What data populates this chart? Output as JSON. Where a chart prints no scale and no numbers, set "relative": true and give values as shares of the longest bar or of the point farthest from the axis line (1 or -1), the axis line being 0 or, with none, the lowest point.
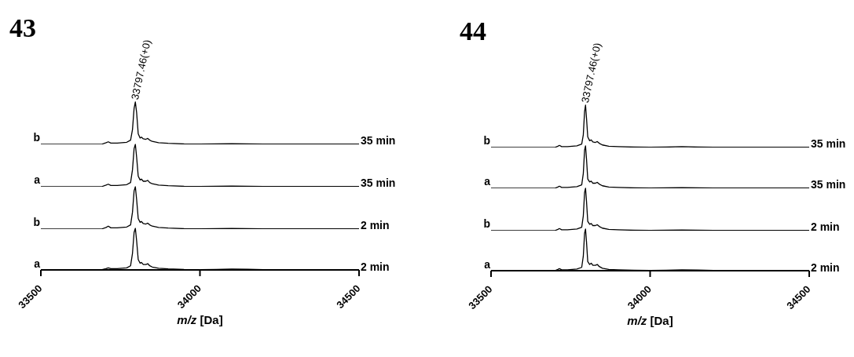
{
  "chart_data": [
    {
      "type": "line",
      "title": "43",
      "relative": true,
      "tick_labels": false,
      "xlim": [
        33500,
        34500
      ],
      "annotations": [
        "b",
        "35 min",
        {
          "text": "33797.46(+0)",
          "x": 33797,
          "y": 1
        }
      ],
      "x": [
        33500,
        33690,
        33705,
        33712,
        33720,
        33740,
        33770,
        33782,
        33788,
        33793,
        33797,
        33801,
        33806,
        33812,
        33816,
        33822,
        33830,
        33836,
        33842,
        33850,
        33870,
        33900,
        33950,
        34000,
        34050,
        34100,
        34150,
        34200,
        34300,
        34400,
        34500
      ],
      "series": [
        {
          "color": "#000000",
          "values": [
            0,
            0,
            0.04,
            0.06,
            0.03,
            0.03,
            0.05,
            0.1,
            0.35,
            0.85,
            1,
            0.75,
            0.25,
            0.15,
            0.17,
            0.13,
            0.12,
            0.14,
            0.1,
            0.07,
            0.04,
            0.025,
            0.01,
            0.005,
            0.01,
            0.015,
            0.01,
            0.005,
            0.005,
            0.005,
            0.005
          ]
        }
      ]
    },
    {
      "type": "line",
      "relative": true,
      "tick_labels": false,
      "xlim": [
        33500,
        34500
      ],
      "annotations": [
        "a",
        "35 min"
      ],
      "x": [
        33500,
        33690,
        33705,
        33712,
        33720,
        33740,
        33770,
        33782,
        33788,
        33793,
        33797,
        33801,
        33806,
        33812,
        33816,
        33822,
        33830,
        33836,
        33842,
        33850,
        33870,
        33900,
        33950,
        34000,
        34050,
        34100,
        34150,
        34200,
        34300,
        34400,
        34500
      ],
      "series": [
        {
          "color": "#000000",
          "values": [
            0,
            0,
            0.04,
            0.06,
            0.03,
            0.03,
            0.05,
            0.1,
            0.4,
            0.9,
            1,
            0.7,
            0.25,
            0.16,
            0.18,
            0.13,
            0.13,
            0.15,
            0.1,
            0.07,
            0.04,
            0.025,
            0.01,
            0.005,
            0.01,
            0.015,
            0.01,
            0.005,
            0.005,
            0.005,
            0.005
          ]
        }
      ]
    },
    {
      "type": "line",
      "relative": true,
      "tick_labels": false,
      "xlim": [
        33500,
        34500
      ],
      "annotations": [
        "b",
        "2 min"
      ],
      "x": [
        33500,
        33690,
        33705,
        33712,
        33720,
        33740,
        33770,
        33782,
        33788,
        33793,
        33797,
        33801,
        33806,
        33812,
        33816,
        33822,
        33830,
        33836,
        33842,
        33850,
        33870,
        33900,
        33950,
        34000,
        34050,
        34100,
        34150,
        34200,
        34300,
        34400,
        34500
      ],
      "series": [
        {
          "color": "#000000",
          "values": [
            0,
            0,
            0.04,
            0.07,
            0.03,
            0.03,
            0.05,
            0.1,
            0.4,
            0.9,
            1,
            0.7,
            0.25,
            0.16,
            0.18,
            0.13,
            0.12,
            0.14,
            0.1,
            0.07,
            0.04,
            0.025,
            0.01,
            0.005,
            0.01,
            0.015,
            0.01,
            0.005,
            0.005,
            0.005,
            0.005
          ]
        }
      ]
    },
    {
      "type": "line",
      "relative": true,
      "xlim": [
        33500,
        34500
      ],
      "xticks": [
        33500,
        34000,
        34500
      ],
      "xlabel": "m/z [Da]",
      "annotations": [
        "a",
        "2 min"
      ],
      "x": [
        33500,
        33690,
        33705,
        33712,
        33720,
        33740,
        33770,
        33782,
        33788,
        33793,
        33797,
        33801,
        33806,
        33812,
        33816,
        33822,
        33830,
        33836,
        33842,
        33850,
        33870,
        33900,
        33950,
        34000,
        34050,
        34100,
        34150,
        34200,
        34300,
        34400,
        34500
      ],
      "series": [
        {
          "color": "#000000",
          "values": [
            0,
            0,
            0.03,
            0.05,
            0.03,
            0.03,
            0.05,
            0.1,
            0.4,
            0.9,
            1,
            0.7,
            0.25,
            0.16,
            0.18,
            0.13,
            0.13,
            0.15,
            0.1,
            0.07,
            0.04,
            0.025,
            0.01,
            0.005,
            0.01,
            0.02,
            0.015,
            0.005,
            0.005,
            0.005,
            0.005
          ]
        }
      ]
    },
    {
      "type": "line",
      "title": "44",
      "relative": true,
      "tick_labels": false,
      "xlim": [
        33500,
        34500
      ],
      "annotations": [
        "b",
        "35 min",
        {
          "text": "33797.46(+0)",
          "x": 33797,
          "y": 1
        }
      ],
      "x": [
        33500,
        33700,
        33710,
        33715,
        33722,
        33740,
        33770,
        33785,
        33790,
        33794,
        33797,
        33800,
        33804,
        33810,
        33815,
        33820,
        33828,
        33834,
        33840,
        33850,
        33870,
        33900,
        33950,
        34000,
        34050,
        34100,
        34150,
        34200,
        34300,
        34400,
        34500
      ],
      "series": [
        {
          "color": "#000000",
          "values": [
            0,
            0,
            0.03,
            0.05,
            0.02,
            0.02,
            0.04,
            0.08,
            0.3,
            0.85,
            1,
            0.7,
            0.25,
            0.16,
            0.18,
            0.13,
            0.12,
            0.14,
            0.1,
            0.06,
            0.03,
            0.02,
            0.01,
            0.005,
            0.01,
            0.02,
            0.01,
            0.005,
            0.005,
            0.005,
            0.005
          ]
        }
      ]
    },
    {
      "type": "line",
      "relative": true,
      "tick_labels": false,
      "xlim": [
        33500,
        34500
      ],
      "annotations": [
        "a",
        "35 min"
      ],
      "x": [
        33500,
        33700,
        33710,
        33715,
        33722,
        33740,
        33770,
        33785,
        33790,
        33794,
        33797,
        33800,
        33804,
        33810,
        33815,
        33820,
        33828,
        33834,
        33840,
        33850,
        33870,
        33900,
        33950,
        34000,
        34050,
        34100,
        34150,
        34200,
        34300,
        34400,
        34500
      ],
      "series": [
        {
          "color": "#000000",
          "values": [
            0,
            0,
            0.03,
            0.05,
            0.02,
            0.02,
            0.04,
            0.08,
            0.35,
            0.9,
            1,
            0.7,
            0.22,
            0.15,
            0.17,
            0.12,
            0.12,
            0.14,
            0.1,
            0.06,
            0.03,
            0.02,
            0.01,
            0.005,
            0.01,
            0.015,
            0.01,
            0.005,
            0.005,
            0.005,
            0.005
          ]
        }
      ]
    },
    {
      "type": "line",
      "relative": true,
      "tick_labels": false,
      "xlim": [
        33500,
        34500
      ],
      "annotations": [
        "b",
        "2 min"
      ],
      "x": [
        33500,
        33700,
        33710,
        33715,
        33722,
        33740,
        33770,
        33785,
        33790,
        33794,
        33797,
        33800,
        33804,
        33810,
        33815,
        33820,
        33828,
        33834,
        33840,
        33850,
        33870,
        33900,
        33950,
        34000,
        34050,
        34100,
        34150,
        34200,
        34300,
        34400,
        34500
      ],
      "series": [
        {
          "color": "#000000",
          "values": [
            0,
            0,
            0.03,
            0.05,
            0.02,
            0.02,
            0.04,
            0.08,
            0.35,
            0.9,
            1,
            0.7,
            0.22,
            0.15,
            0.17,
            0.12,
            0.12,
            0.14,
            0.1,
            0.06,
            0.03,
            0.02,
            0.01,
            0.005,
            0.01,
            0.015,
            0.01,
            0.005,
            0.005,
            0.005,
            0.005
          ]
        }
      ]
    },
    {
      "type": "line",
      "relative": true,
      "xlim": [
        33500,
        34500
      ],
      "xticks": [
        33500,
        34000,
        34500
      ],
      "xlabel": "m/z [Da]",
      "annotations": [
        "a",
        "2 min"
      ],
      "x": [
        33500,
        33700,
        33710,
        33715,
        33722,
        33740,
        33770,
        33785,
        33790,
        33794,
        33797,
        33800,
        33804,
        33810,
        33815,
        33820,
        33828,
        33834,
        33840,
        33850,
        33870,
        33900,
        33950,
        34000,
        34050,
        34100,
        34150,
        34200,
        34300,
        34400,
        34500
      ],
      "series": [
        {
          "color": "#000000",
          "values": [
            0,
            0,
            0.03,
            0.05,
            0.02,
            0.02,
            0.04,
            0.08,
            0.35,
            0.9,
            1,
            0.7,
            0.22,
            0.15,
            0.18,
            0.13,
            0.13,
            0.15,
            0.1,
            0.06,
            0.03,
            0.02,
            0.01,
            0.005,
            0.01,
            0.02,
            0.015,
            0.005,
            0.005,
            0.005,
            0.005
          ]
        }
      ]
    }
  ]
}
